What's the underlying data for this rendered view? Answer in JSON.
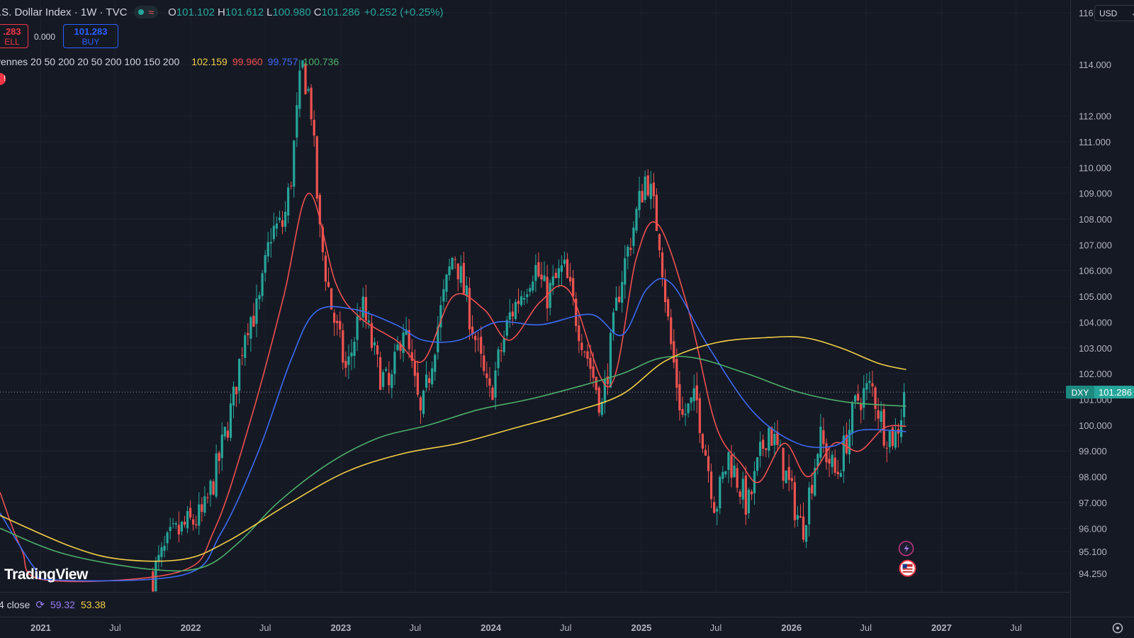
{
  "header": {
    "symbol_title": ".S. Dollar Index · 1W · TVC",
    "ohlc": [
      {
        "k": "O",
        "v": "101.102"
      },
      {
        "k": "H",
        "v": "101.612"
      },
      {
        "k": "L",
        "v": "100.980"
      },
      {
        "k": "C",
        "v": "101.286"
      }
    ],
    "change": "+0.252 (+0.25%)"
  },
  "trade": {
    "sell_price": ".283",
    "sell_label": "ELL",
    "spread": "0.000",
    "buy_price": "101.283",
    "buy_label": "BUY"
  },
  "indicator_ma": {
    "name": "yennes 20 50 200 20 50 200 100 150 200",
    "values": [
      {
        "v": "102.159",
        "color": "#f2cf45"
      },
      {
        "v": "99.960",
        "color": "#f0504f"
      },
      {
        "v": "99.757",
        "color": "#3d6bf5"
      },
      {
        "v": "100.736",
        "color": "#4caf6a"
      }
    ],
    "flag": "!"
  },
  "indicator_rsi": {
    "label": "4 close",
    "value1": "59.32",
    "value2": "53.38"
  },
  "logo": "TradingView",
  "currency": "USD",
  "price_tag": {
    "symbol": "DXY",
    "price": "101.286"
  },
  "colors": {
    "background": "#151924",
    "up": "#26a69a",
    "down": "#ef5350",
    "ma_red": "#f0504f",
    "ma_blue": "#3d6bf5",
    "ma_green": "#4caf6a",
    "ma_yellow": "#f2cf45",
    "grid": "#1e2230"
  },
  "chart_data": {
    "type": "candlestick",
    "timeframe": "1W",
    "x_tick_labels": [
      "2021",
      "Jul",
      "2022",
      "Jul",
      "2023",
      "Jul",
      "2024",
      "Jul",
      "2025",
      "Jul",
      "2026",
      "Jul",
      "2027",
      "Jul"
    ],
    "y_tick_labels": [
      "116.000",
      "114.000",
      "112.000",
      "111.000",
      "110.000",
      "109.000",
      "108.000",
      "107.000",
      "106.000",
      "105.000",
      "104.000",
      "103.000",
      "102.000",
      "101.000",
      "100.000",
      "99.000",
      "98.000",
      "97.000",
      "96.000",
      "95.100",
      "94.250"
    ],
    "ylim": [
      94.0,
      116.5
    ],
    "xlim": [
      "2020-09-24",
      "2027-11-10"
    ],
    "last_price": 101.286,
    "price_path": [
      [
        "2021-10-01",
        94.2
      ],
      [
        "2021-11-15",
        95.6
      ],
      [
        "2021-12-20",
        96.1
      ],
      [
        "2022-02-01",
        96.5
      ],
      [
        "2022-03-10",
        98.6
      ],
      [
        "2022-04-15",
        101.0
      ],
      [
        "2022-05-15",
        104.0
      ],
      [
        "2022-06-15",
        104.5
      ],
      [
        "2022-07-15",
        107.5
      ],
      [
        "2022-08-15",
        107.8
      ],
      [
        "2022-09-01",
        109.5
      ],
      [
        "2022-09-28",
        114.0
      ],
      [
        "2022-10-20",
        112.5
      ],
      [
        "2022-11-10",
        107.5
      ],
      [
        "2022-12-10",
        104.5
      ],
      [
        "2023-01-15",
        102.0
      ],
      [
        "2023-02-20",
        104.7
      ],
      [
        "2023-04-01",
        102.2
      ],
      [
        "2023-05-01",
        101.3
      ],
      [
        "2023-06-01",
        104.0
      ],
      [
        "2023-07-15",
        100.2
      ],
      [
        "2023-08-20",
        103.5
      ],
      [
        "2023-10-03",
        106.8
      ],
      [
        "2023-11-15",
        104.0
      ],
      [
        "2023-12-27",
        101.0
      ],
      [
        "2024-02-15",
        104.2
      ],
      [
        "2024-04-16",
        106.2
      ],
      [
        "2024-05-15",
        105.0
      ],
      [
        "2024-06-26",
        106.1
      ],
      [
        "2024-07-25",
        104.3
      ],
      [
        "2024-09-27",
        100.7
      ],
      [
        "2024-11-10",
        105.5
      ],
      [
        "2025-01-13",
        109.8
      ],
      [
        "2025-02-15",
        107.2
      ],
      [
        "2025-03-10",
        103.5
      ],
      [
        "2025-04-10",
        100.3
      ],
      [
        "2025-05-15",
        101.0
      ],
      [
        "2025-06-30",
        96.8
      ],
      [
        "2025-08-01",
        98.8
      ],
      [
        "2025-09-17",
        96.8
      ],
      [
        "2025-11-05",
        100.0
      ],
      [
        "2025-12-10",
        98.5
      ],
      [
        "2026-01-27",
        95.9
      ],
      [
        "2026-03-10",
        99.5
      ],
      [
        "2026-04-20",
        98.0
      ],
      [
        "2026-06-10",
        101.0
      ],
      [
        "2026-07-15",
        101.5
      ],
      [
        "2026-08-15",
        99.8
      ],
      [
        "2026-09-10",
        99.5
      ],
      [
        "2026-10-07",
        101.286
      ]
    ],
    "series": [
      {
        "name": "MA 20",
        "color": "#f0504f",
        "points": [
          [
            "2020-09-24",
            97.4
          ],
          [
            "2020-11-15",
            95.2
          ],
          [
            "2021-01-10",
            94.0
          ],
          [
            "2021-12-01",
            94.3
          ],
          [
            "2022-03-01",
            96.0
          ],
          [
            "2022-06-01",
            100.5
          ],
          [
            "2022-08-15",
            105.0
          ],
          [
            "2022-10-15",
            109.0
          ],
          [
            "2022-12-20",
            105.5
          ],
          [
            "2023-02-15",
            104.2
          ],
          [
            "2023-05-15",
            103.3
          ],
          [
            "2023-07-20",
            102.5
          ],
          [
            "2023-10-01",
            105.0
          ],
          [
            "2023-12-15",
            104.5
          ],
          [
            "2024-02-15",
            103.3
          ],
          [
            "2024-05-01",
            104.8
          ],
          [
            "2024-07-10",
            105.2
          ],
          [
            "2024-10-15",
            101.5
          ],
          [
            "2024-12-20",
            106.5
          ],
          [
            "2025-02-10",
            107.8
          ],
          [
            "2025-04-25",
            104.5
          ],
          [
            "2025-07-01",
            100.0
          ],
          [
            "2025-09-01",
            98.5
          ],
          [
            "2025-10-15",
            97.8
          ],
          [
            "2025-12-15",
            99.3
          ],
          [
            "2026-02-10",
            98.0
          ],
          [
            "2026-04-15",
            99.3
          ],
          [
            "2026-06-15",
            99.0
          ],
          [
            "2026-08-15",
            99.9
          ],
          [
            "2026-10-07",
            99.96
          ]
        ]
      },
      {
        "name": "MA 50",
        "color": "#3d6bf5",
        "points": [
          [
            "2020-09-24",
            96.6
          ],
          [
            "2020-12-15",
            94.5
          ],
          [
            "2021-02-01",
            94.0
          ],
          [
            "2021-12-15",
            94.2
          ],
          [
            "2022-03-15",
            95.8
          ],
          [
            "2022-06-15",
            99.0
          ],
          [
            "2022-09-01",
            102.5
          ],
          [
            "2022-11-01",
            104.4
          ],
          [
            "2023-02-01",
            104.5
          ],
          [
            "2023-05-15",
            103.9
          ],
          [
            "2023-07-20",
            103.3
          ],
          [
            "2023-10-15",
            103.3
          ],
          [
            "2024-01-15",
            104.0
          ],
          [
            "2024-05-01",
            103.9
          ],
          [
            "2024-09-01",
            104.3
          ],
          [
            "2024-11-15",
            103.5
          ],
          [
            "2025-01-15",
            105.3
          ],
          [
            "2025-03-15",
            105.5
          ],
          [
            "2025-06-15",
            103.0
          ],
          [
            "2025-10-01",
            100.5
          ],
          [
            "2026-01-15",
            99.3
          ],
          [
            "2026-04-15",
            99.2
          ],
          [
            "2026-06-15",
            99.8
          ],
          [
            "2026-10-07",
            99.757
          ]
        ]
      },
      {
        "name": "MA 200",
        "color": "#4caf6a",
        "points": [
          [
            "2020-09-24",
            96.0
          ],
          [
            "2021-03-01",
            95.0
          ],
          [
            "2021-10-01",
            94.4
          ],
          [
            "2022-02-01",
            94.5
          ],
          [
            "2022-05-01",
            95.5
          ],
          [
            "2022-08-01",
            97.0
          ],
          [
            "2022-12-01",
            98.5
          ],
          [
            "2023-04-01",
            99.5
          ],
          [
            "2023-08-01",
            100.0
          ],
          [
            "2023-12-01",
            100.6
          ],
          [
            "2024-04-01",
            101.0
          ],
          [
            "2024-08-01",
            101.5
          ],
          [
            "2024-11-15",
            102.0
          ],
          [
            "2025-02-15",
            102.6
          ],
          [
            "2025-05-15",
            102.6
          ],
          [
            "2025-09-15",
            102.0
          ],
          [
            "2026-01-15",
            101.3
          ],
          [
            "2026-05-15",
            100.9
          ],
          [
            "2026-10-07",
            100.736
          ]
        ]
      },
      {
        "name": "MA 150",
        "color": "#f2cf45",
        "points": [
          [
            "2020-09-24",
            96.5
          ],
          [
            "2021-03-15",
            95.3
          ],
          [
            "2021-07-15",
            94.8
          ],
          [
            "2021-12-15",
            94.8
          ],
          [
            "2022-04-01",
            95.5
          ],
          [
            "2022-09-01",
            97.0
          ],
          [
            "2023-01-15",
            98.2
          ],
          [
            "2023-06-01",
            98.9
          ],
          [
            "2023-10-15",
            99.3
          ],
          [
            "2024-03-01",
            99.9
          ],
          [
            "2024-07-15",
            100.5
          ],
          [
            "2024-11-15",
            101.2
          ],
          [
            "2025-03-01",
            102.5
          ],
          [
            "2025-07-01",
            103.2
          ],
          [
            "2025-11-01",
            103.4
          ],
          [
            "2026-02-01",
            103.4
          ],
          [
            "2026-05-01",
            103.0
          ],
          [
            "2026-08-01",
            102.4
          ],
          [
            "2026-10-07",
            102.159
          ]
        ]
      }
    ]
  }
}
